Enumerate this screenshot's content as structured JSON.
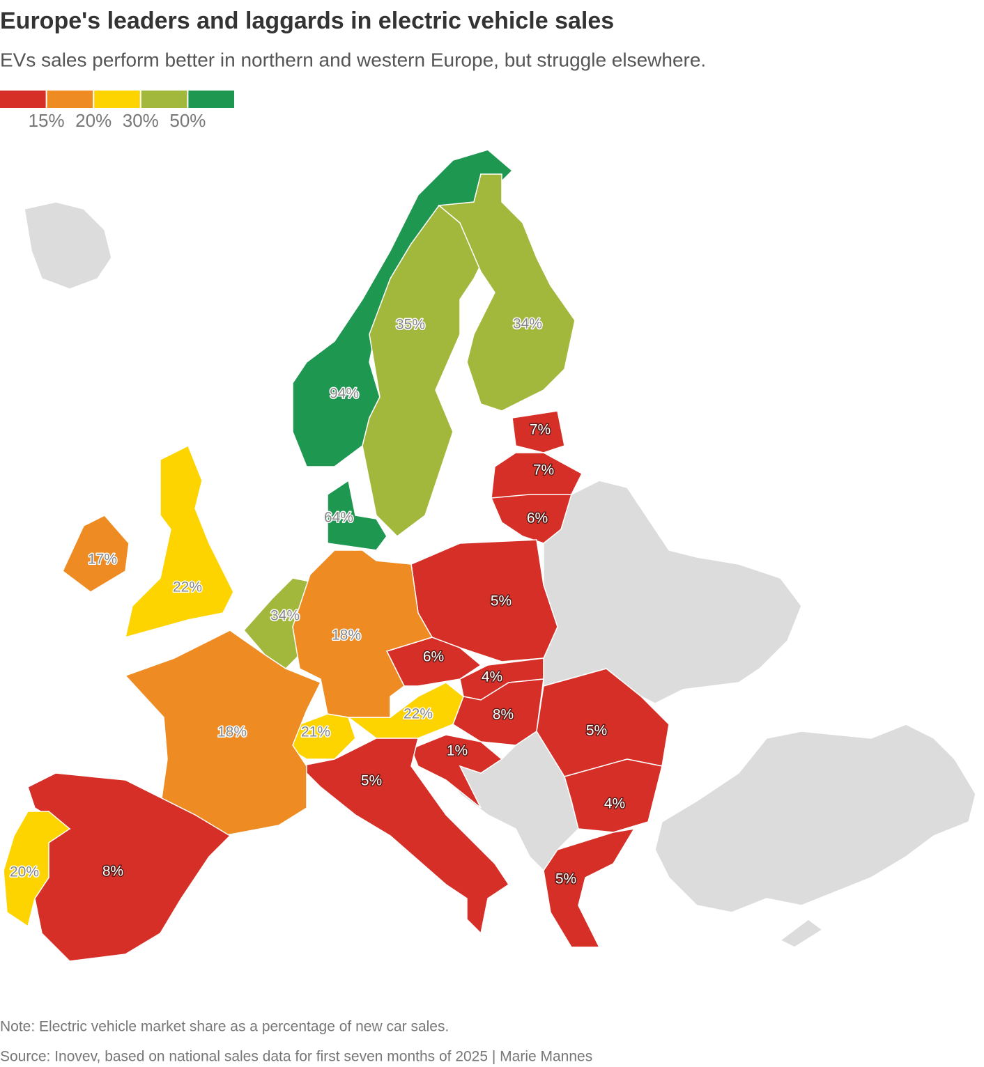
{
  "chart_data": {
    "type": "choropleth",
    "title": "Europe's leaders and laggards in electric vehicle sales",
    "subtitle": "EVs sales perform better in northern and western Europe, but struggle elsewhere.",
    "colors": [
      "#d52f27",
      "#ee8b22",
      "#fdd300",
      "#a2b83d",
      "#1e9850"
    ],
    "ticks": [
      {
        "value": 15,
        "label": "15%"
      },
      {
        "value": 20,
        "label": "20%"
      },
      {
        "value": 30,
        "label": "30%"
      },
      {
        "value": 50,
        "label": "50%"
      }
    ],
    "values": [
      94,
      64,
      35,
      34,
      34,
      7,
      7,
      6,
      5,
      6,
      4,
      8,
      22,
      21,
      1,
      5,
      4,
      5,
      5,
      18,
      18,
      8,
      20,
      22,
      17
    ],
    "value_labels": [
      "94%",
      "64%",
      "35%",
      "34%",
      "34%",
      "7%",
      "7%",
      "6%",
      "5%",
      "6%",
      "4%",
      "8%",
      "22%",
      "21%",
      "1%",
      "5%",
      "4%",
      "5%",
      "5%",
      "18%",
      "18%",
      "8%",
      "20%",
      "22%",
      "17%"
    ],
    "note": "Note: Electric vehicle market share as a percentage of new car sales.",
    "source": "Source: Inovev, based on national sales data for first seven months of 2025 | Marie Mannes"
  }
}
